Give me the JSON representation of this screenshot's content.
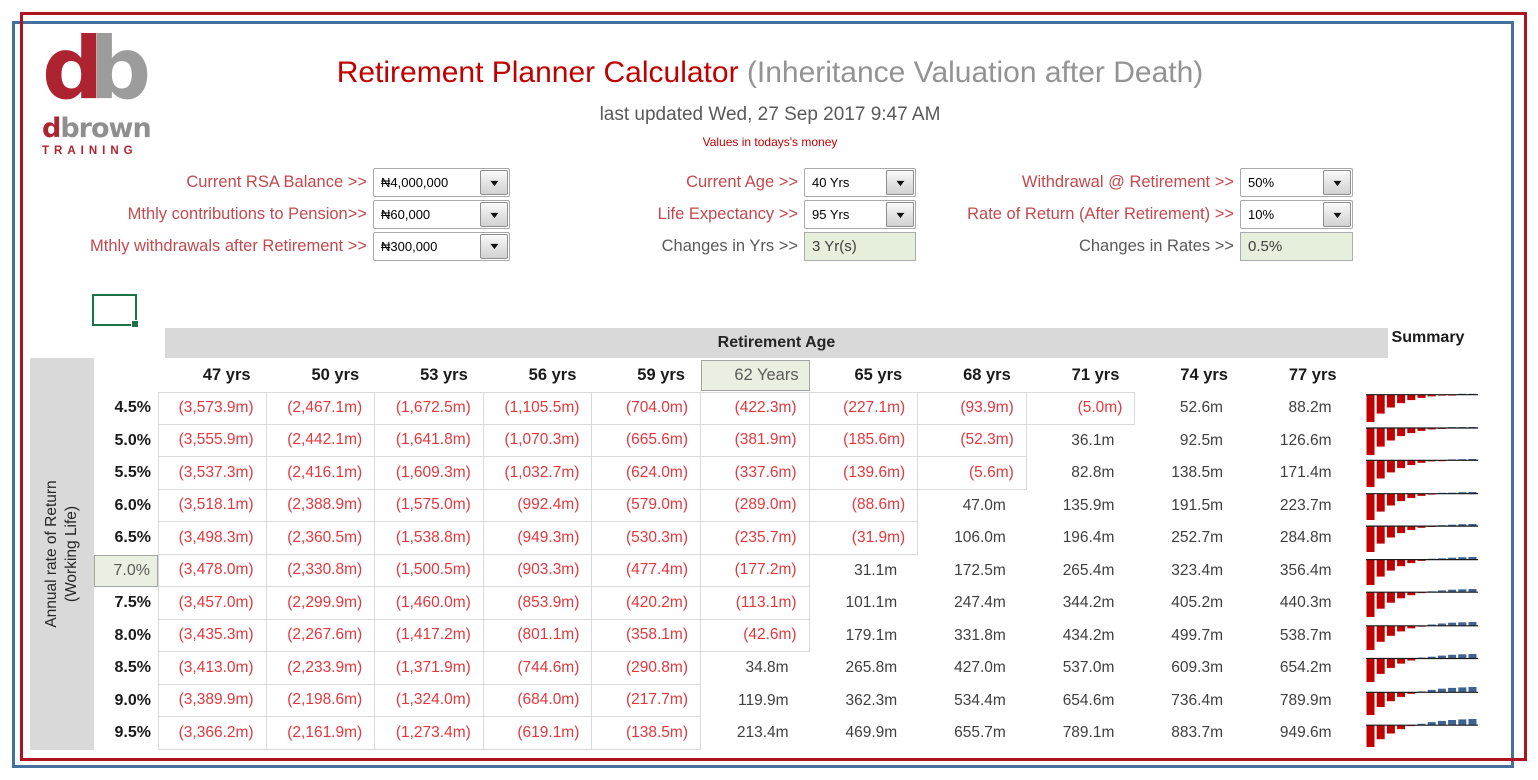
{
  "logo": {
    "mark_d": "d",
    "mark_b": "b",
    "name_d": "d",
    "name_rest": "brown",
    "training": "TRAINING"
  },
  "header": {
    "title_main": "Retirement Planner Calculator",
    "title_sub": " (Inheritance Valuation after Death)",
    "updated": "last updated Wed, 27 Sep 2017 9:47 AM",
    "note": "Values in todays's money"
  },
  "icons": {
    "dropdown_arrow": "▼"
  },
  "inputs": {
    "left": [
      {
        "label": "Current RSA Balance >>",
        "value": "₦4,000,000",
        "control": "combo"
      },
      {
        "label": "Mthly contributions to Pension>>",
        "value": "₦60,000",
        "control": "combo"
      },
      {
        "label": "Mthly withdrawals after Retirement >>",
        "value": "₦300,000",
        "control": "combo"
      }
    ],
    "middle": [
      {
        "label": "Current Age >>",
        "value": "40 Yrs",
        "control": "combo"
      },
      {
        "label": "Life Expectancy >>",
        "value": "95 Yrs",
        "control": "combo"
      },
      {
        "label": "Changes in Yrs >>",
        "value": "3 Yr(s)",
        "control": "green"
      }
    ],
    "right": [
      {
        "label": "Withdrawal @ Retirement >>",
        "value": "50%",
        "control": "combo"
      },
      {
        "label": "Rate of Return (After Retirement) >>",
        "value": "10%",
        "control": "combo"
      },
      {
        "label": "Changes in Rates >>",
        "value": "0.5%",
        "control": "green"
      }
    ]
  },
  "table": {
    "corner_title": "Retirement Age",
    "summary_label": "Summary",
    "row_axis_label_line1": "Annual rate of Return",
    "row_axis_label_line2": "(Working Life)",
    "columns": [
      "47 yrs",
      "50 yrs",
      "53 yrs",
      "56 yrs",
      "59 yrs",
      "62 Years",
      "65 yrs",
      "68 yrs",
      "71 yrs",
      "74 yrs",
      "77 yrs"
    ],
    "highlighted_column_index": 5,
    "highlighted_row_index": 5,
    "rows": [
      {
        "rate": "4.5%",
        "values": [
          "(3,573.9m)",
          "(2,467.1m)",
          "(1,672.5m)",
          "(1,105.5m)",
          "(704.0m)",
          "(422.3m)",
          "(227.1m)",
          "(93.9m)",
          "(5.0m)",
          "52.6m",
          "88.2m"
        ]
      },
      {
        "rate": "5.0%",
        "values": [
          "(3,555.9m)",
          "(2,442.1m)",
          "(1,641.8m)",
          "(1,070.3m)",
          "(665.6m)",
          "(381.9m)",
          "(185.6m)",
          "(52.3m)",
          "36.1m",
          "92.5m",
          "126.6m"
        ]
      },
      {
        "rate": "5.5%",
        "values": [
          "(3,537.3m)",
          "(2,416.1m)",
          "(1,609.3m)",
          "(1,032.7m)",
          "(624.0m)",
          "(337.6m)",
          "(139.6m)",
          "(5.6m)",
          "82.8m",
          "138.5m",
          "171.4m"
        ]
      },
      {
        "rate": "6.0%",
        "values": [
          "(3,518.1m)",
          "(2,388.9m)",
          "(1,575.0m)",
          "(992.4m)",
          "(579.0m)",
          "(289.0m)",
          "(88.6m)",
          "47.0m",
          "135.9m",
          "191.5m",
          "223.7m"
        ]
      },
      {
        "rate": "6.5%",
        "values": [
          "(3,498.3m)",
          "(2,360.5m)",
          "(1,538.8m)",
          "(949.3m)",
          "(530.3m)",
          "(235.7m)",
          "(31.9m)",
          "106.0m",
          "196.4m",
          "252.7m",
          "284.8m"
        ]
      },
      {
        "rate": "7.0%",
        "values": [
          "(3,478.0m)",
          "(2,330.8m)",
          "(1,500.5m)",
          "(903.3m)",
          "(477.4m)",
          "(177.2m)",
          "31.1m",
          "172.5m",
          "265.4m",
          "323.4m",
          "356.4m"
        ]
      },
      {
        "rate": "7.5%",
        "values": [
          "(3,457.0m)",
          "(2,299.9m)",
          "(1,460.0m)",
          "(853.9m)",
          "(420.2m)",
          "(113.1m)",
          "101.1m",
          "247.4m",
          "344.2m",
          "405.2m",
          "440.3m"
        ]
      },
      {
        "rate": "8.0%",
        "values": [
          "(3,435.3m)",
          "(2,267.6m)",
          "(1,417.2m)",
          "(801.1m)",
          "(358.1m)",
          "(42.6m)",
          "179.1m",
          "331.8m",
          "434.2m",
          "499.7m",
          "538.7m"
        ]
      },
      {
        "rate": "8.5%",
        "values": [
          "(3,413.0m)",
          "(2,233.9m)",
          "(1,371.9m)",
          "(744.6m)",
          "(290.8m)",
          "34.8m",
          "265.8m",
          "427.0m",
          "537.0m",
          "609.3m",
          "654.2m"
        ]
      },
      {
        "rate": "9.0%",
        "values": [
          "(3,389.9m)",
          "(2,198.6m)",
          "(1,324.0m)",
          "(684.0m)",
          "(217.7m)",
          "119.9m",
          "362.3m",
          "534.4m",
          "654.6m",
          "736.4m",
          "789.9m"
        ]
      },
      {
        "rate": "9.5%",
        "values": [
          "(3,366.2m)",
          "(2,161.9m)",
          "(1,273.4m)",
          "(619.1m)",
          "(138.5m)",
          "213.4m",
          "469.9m",
          "655.7m",
          "789.1m",
          "883.7m",
          "949.6m"
        ]
      }
    ]
  },
  "colors": {
    "accent_red": "#C00000",
    "label_red": "#C3494F",
    "negative_value": "#E2383E",
    "positive_value": "#3F3F3F",
    "band_gray": "#D9D9D9",
    "green_fill": "#E5EFDC",
    "highlight_green": "#E9F0E1",
    "frame_red": "#AE1420",
    "frame_blue": "#44709D",
    "spark_negative": "#C00000",
    "spark_positive": "#3E6392",
    "selection_green": "#1E7145"
  }
}
